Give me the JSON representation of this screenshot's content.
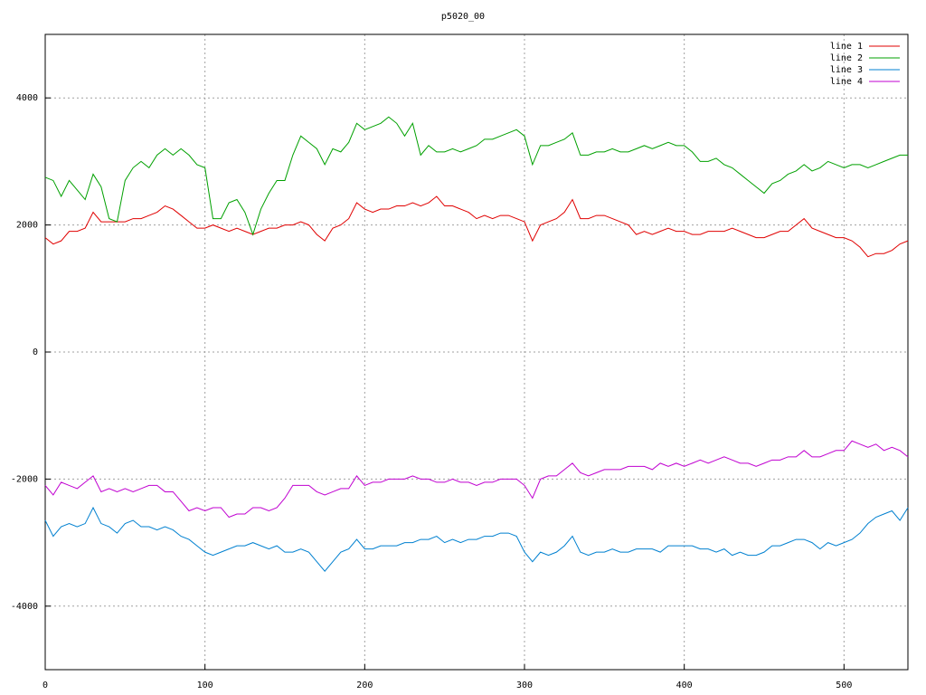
{
  "chart_data": {
    "type": "line",
    "title": "p5020_00",
    "x": [
      0,
      5,
      10,
      15,
      20,
      25,
      30,
      35,
      40,
      45,
      50,
      55,
      60,
      65,
      70,
      75,
      80,
      85,
      90,
      95,
      100,
      105,
      110,
      115,
      120,
      125,
      130,
      135,
      140,
      145,
      150,
      155,
      160,
      165,
      170,
      175,
      180,
      185,
      190,
      195,
      200,
      205,
      210,
      215,
      220,
      225,
      230,
      235,
      240,
      245,
      250,
      255,
      260,
      265,
      270,
      275,
      280,
      285,
      290,
      295,
      300,
      305,
      310,
      315,
      320,
      325,
      330,
      335,
      340,
      345,
      350,
      355,
      360,
      365,
      370,
      375,
      380,
      385,
      390,
      395,
      400,
      405,
      410,
      415,
      420,
      425,
      430,
      435,
      440,
      445,
      450,
      455,
      460,
      465,
      470,
      475,
      480,
      485,
      490,
      495,
      500,
      505,
      510,
      515,
      520,
      525,
      530,
      535,
      540
    ],
    "series": [
      {
        "name": "line 1",
        "color": "#e00000",
        "values": [
          1800,
          1700,
          1750,
          1900,
          1900,
          1950,
          2200,
          2050,
          2050,
          2050,
          2050,
          2100,
          2100,
          2150,
          2200,
          2300,
          2250,
          2150,
          2050,
          1950,
          1950,
          2000,
          1950,
          1900,
          1950,
          1900,
          1850,
          1900,
          1950,
          1950,
          2000,
          2000,
          2050,
          2000,
          1850,
          1750,
          1950,
          2000,
          2100,
          2350,
          2250,
          2200,
          2250,
          2250,
          2300,
          2300,
          2350,
          2300,
          2350,
          2450,
          2300,
          2300,
          2250,
          2200,
          2100,
          2150,
          2100,
          2150,
          2150,
          2100,
          2050,
          1750,
          2000,
          2050,
          2100,
          2200,
          2400,
          2100,
          2100,
          2150,
          2150,
          2100,
          2050,
          2000,
          1850,
          1900,
          1850,
          1900,
          1950,
          1900,
          1900,
          1850,
          1850,
          1900,
          1900,
          1900,
          1950,
          1900,
          1850,
          1800,
          1800,
          1850,
          1900,
          1900,
          2000,
          2100,
          1950,
          1900,
          1850,
          1800,
          1800,
          1750,
          1650,
          1500,
          1550,
          1550,
          1600,
          1700,
          1750
        ]
      },
      {
        "name": "line 2",
        "color": "#00a000",
        "values": [
          2750,
          2700,
          2450,
          2700,
          2550,
          2400,
          2800,
          2600,
          2100,
          2050,
          2700,
          2900,
          3000,
          2900,
          3100,
          3200,
          3100,
          3200,
          3100,
          2950,
          2900,
          2100,
          2100,
          2350,
          2400,
          2200,
          1850,
          2250,
          2500,
          2700,
          2700,
          3100,
          3400,
          3300,
          3200,
          2950,
          3200,
          3150,
          3300,
          3600,
          3500,
          3550,
          3600,
          3700,
          3600,
          3400,
          3600,
          3100,
          3250,
          3150,
          3150,
          3200,
          3150,
          3200,
          3250,
          3350,
          3350,
          3400,
          3450,
          3500,
          3400,
          2950,
          3250,
          3250,
          3300,
          3350,
          3450,
          3100,
          3100,
          3150,
          3150,
          3200,
          3150,
          3150,
          3200,
          3250,
          3200,
          3250,
          3300,
          3250,
          3250,
          3150,
          3000,
          3000,
          3050,
          2950,
          2900,
          2800,
          2700,
          2600,
          2500,
          2650,
          2700,
          2800,
          2850,
          2950,
          2850,
          2900,
          3000,
          2950,
          2900,
          2950,
          2950,
          2900,
          2950,
          3000,
          3050,
          3100,
          3100
        ]
      },
      {
        "name": "line 3",
        "color": "#0080d0",
        "values": [
          -2650,
          -2900,
          -2750,
          -2700,
          -2750,
          -2700,
          -2450,
          -2700,
          -2750,
          -2850,
          -2700,
          -2650,
          -2750,
          -2750,
          -2800,
          -2750,
          -2800,
          -2900,
          -2950,
          -3050,
          -3150,
          -3200,
          -3150,
          -3100,
          -3050,
          -3050,
          -3000,
          -3050,
          -3100,
          -3050,
          -3150,
          -3150,
          -3100,
          -3150,
          -3300,
          -3450,
          -3300,
          -3150,
          -3100,
          -2950,
          -3100,
          -3100,
          -3050,
          -3050,
          -3050,
          -3000,
          -3000,
          -2950,
          -2950,
          -2900,
          -3000,
          -2950,
          -3000,
          -2950,
          -2950,
          -2900,
          -2900,
          -2850,
          -2850,
          -2900,
          -3150,
          -3300,
          -3150,
          -3200,
          -3150,
          -3050,
          -2900,
          -3150,
          -3200,
          -3150,
          -3150,
          -3100,
          -3150,
          -3150,
          -3100,
          -3100,
          -3100,
          -3150,
          -3050,
          -3050,
          -3050,
          -3050,
          -3100,
          -3100,
          -3150,
          -3100,
          -3200,
          -3150,
          -3200,
          -3200,
          -3150,
          -3050,
          -3050,
          -3000,
          -2950,
          -2950,
          -3000,
          -3100,
          -3000,
          -3050,
          -3000,
          -2950,
          -2850,
          -2700,
          -2600,
          -2550,
          -2500,
          -2650,
          -2450
        ]
      },
      {
        "name": "line 4",
        "color": "#c000d0",
        "values": [
          -2100,
          -2250,
          -2050,
          -2100,
          -2150,
          -2050,
          -1950,
          -2200,
          -2150,
          -2200,
          -2150,
          -2200,
          -2150,
          -2100,
          -2100,
          -2200,
          -2200,
          -2350,
          -2500,
          -2450,
          -2500,
          -2450,
          -2450,
          -2600,
          -2550,
          -2550,
          -2450,
          -2450,
          -2500,
          -2450,
          -2300,
          -2100,
          -2100,
          -2100,
          -2200,
          -2250,
          -2200,
          -2150,
          -2150,
          -1950,
          -2100,
          -2050,
          -2050,
          -2000,
          -2000,
          -2000,
          -1950,
          -2000,
          -2000,
          -2050,
          -2050,
          -2000,
          -2050,
          -2050,
          -2100,
          -2050,
          -2050,
          -2000,
          -2000,
          -2000,
          -2100,
          -2300,
          -2000,
          -1950,
          -1950,
          -1850,
          -1750,
          -1900,
          -1950,
          -1900,
          -1850,
          -1850,
          -1850,
          -1800,
          -1800,
          -1800,
          -1850,
          -1750,
          -1800,
          -1750,
          -1800,
          -1750,
          -1700,
          -1750,
          -1700,
          -1650,
          -1700,
          -1750,
          -1750,
          -1800,
          -1750,
          -1700,
          -1700,
          -1650,
          -1650,
          -1550,
          -1650,
          -1650,
          -1600,
          -1550,
          -1550,
          -1400,
          -1450,
          -1500,
          -1450,
          -1550,
          -1500,
          -1550,
          -1650
        ]
      }
    ],
    "xlim": [
      0,
      540
    ],
    "ylim": [
      -5000,
      5000
    ],
    "xticks": [
      0,
      100,
      200,
      300,
      400,
      500
    ],
    "yticks": [
      -4000,
      -2000,
      0,
      2000,
      4000
    ],
    "grid": true,
    "legend": "top-right"
  }
}
